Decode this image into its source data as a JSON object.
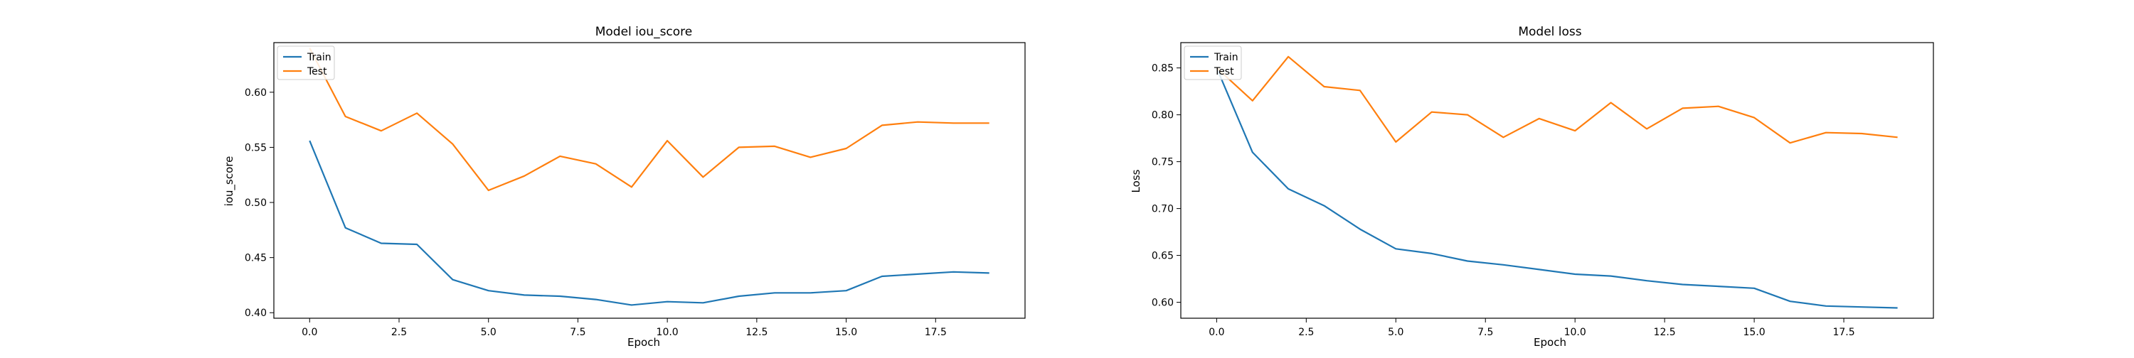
{
  "chart_data": [
    {
      "type": "line",
      "title": "Model iou_score",
      "xlabel": "Epoch",
      "ylabel": "iou_score",
      "xlim": [
        -1,
        20
      ],
      "ylim": [
        0.395,
        0.645
      ],
      "x_ticks": [
        0.0,
        2.5,
        5.0,
        7.5,
        10.0,
        12.5,
        15.0,
        17.5
      ],
      "x_tick_labels": [
        "0.0",
        "2.5",
        "5.0",
        "7.5",
        "10.0",
        "12.5",
        "15.0",
        "17.5"
      ],
      "y_ticks": [
        0.4,
        0.45,
        0.5,
        0.55,
        0.6
      ],
      "y_tick_labels": [
        "0.40",
        "0.45",
        "0.50",
        "0.55",
        "0.60"
      ],
      "grid": false,
      "legend_position": "top-left",
      "x": [
        0,
        1,
        2,
        3,
        4,
        5,
        6,
        7,
        8,
        9,
        10,
        11,
        12,
        13,
        14,
        15,
        16,
        17,
        18,
        19
      ],
      "series": [
        {
          "name": "Train",
          "color": "#1f77b4",
          "values": [
            0.556,
            0.477,
            0.463,
            0.462,
            0.43,
            0.42,
            0.416,
            0.415,
            0.412,
            0.407,
            0.41,
            0.409,
            0.415,
            0.418,
            0.418,
            0.42,
            0.433,
            0.435,
            0.437,
            0.436
          ]
        },
        {
          "name": "Test",
          "color": "#ff7f0e",
          "values": [
            0.64,
            0.578,
            0.565,
            0.581,
            0.553,
            0.511,
            0.524,
            0.542,
            0.535,
            0.514,
            0.556,
            0.523,
            0.55,
            0.551,
            0.541,
            0.549,
            0.57,
            0.573,
            0.572,
            0.572
          ]
        }
      ]
    },
    {
      "type": "line",
      "title": "Model loss",
      "xlabel": "Epoch",
      "ylabel": "Loss",
      "xlim": [
        -1,
        20
      ],
      "ylim": [
        0.583,
        0.877
      ],
      "x_ticks": [
        0.0,
        2.5,
        5.0,
        7.5,
        10.0,
        12.5,
        15.0,
        17.5
      ],
      "x_tick_labels": [
        "0.0",
        "2.5",
        "5.0",
        "7.5",
        "10.0",
        "12.5",
        "15.0",
        "17.5"
      ],
      "y_ticks": [
        0.6,
        0.65,
        0.7,
        0.75,
        0.8,
        0.85
      ],
      "y_tick_labels": [
        "0.60",
        "0.65",
        "0.70",
        "0.75",
        "0.80",
        "0.85"
      ],
      "grid": false,
      "legend_position": "top-left",
      "x": [
        0,
        1,
        2,
        3,
        4,
        5,
        6,
        7,
        8,
        9,
        10,
        11,
        12,
        13,
        14,
        15,
        16,
        17,
        18,
        19
      ],
      "series": [
        {
          "name": "Train",
          "color": "#1f77b4",
          "values": [
            0.85,
            0.76,
            0.721,
            0.703,
            0.678,
            0.657,
            0.652,
            0.644,
            0.64,
            0.635,
            0.63,
            0.628,
            0.623,
            0.619,
            0.617,
            0.615,
            0.601,
            0.596,
            0.595,
            0.594
          ]
        },
        {
          "name": "Test",
          "color": "#ff7f0e",
          "values": [
            0.85,
            0.815,
            0.862,
            0.83,
            0.826,
            0.771,
            0.803,
            0.8,
            0.776,
            0.796,
            0.783,
            0.813,
            0.785,
            0.807,
            0.809,
            0.797,
            0.77,
            0.781,
            0.78,
            0.776
          ]
        }
      ]
    }
  ]
}
